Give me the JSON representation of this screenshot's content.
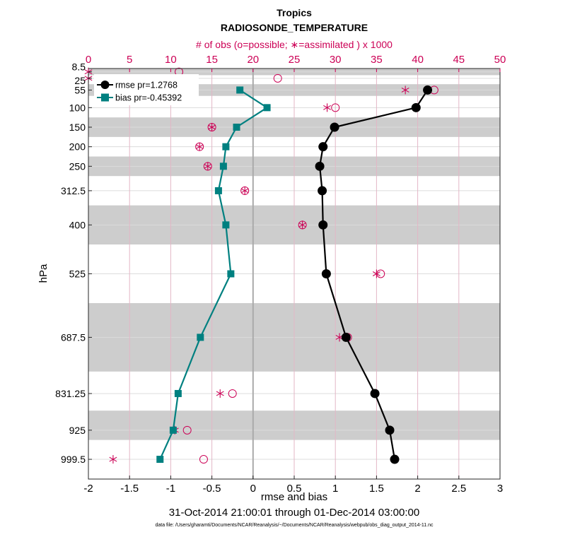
{
  "chart_data": {
    "type": "line",
    "title": "Tropics",
    "subtitle": "RADIOSONDE_TEMPERATURE",
    "top_axis_label": "# of obs (o=possible; ∗=assimilated ) x 1000",
    "xlabel": "rmse and bias",
    "ylabel": "hPa",
    "date_range": "31-Oct-2014 21:00:01 through 01-Dec-2014 03:00:00",
    "footnote": "data file: /Users/gharamti/Documents/NCAR/Reanalysis/~/Documents/NCAR/Reanalysis/webpub/obs_diag_output_2014-11.nc",
    "xlim": [
      -2,
      3
    ],
    "xticks": [
      -2,
      -1.5,
      -1,
      -0.5,
      0,
      0.5,
      1,
      1.5,
      2,
      2.5,
      3
    ],
    "xtick_labels": [
      "-2",
      "-1.5",
      "-1",
      "-0.5",
      "0",
      "0.5",
      "1",
      "1.5",
      "2",
      "2.5",
      "3"
    ],
    "top_xlim": [
      0,
      50
    ],
    "top_xticks": [
      0,
      5,
      10,
      15,
      20,
      25,
      30,
      35,
      40,
      45,
      50
    ],
    "top_xtick_labels": [
      "0",
      "5",
      "10",
      "15",
      "20",
      "25",
      "30",
      "35",
      "40",
      "45",
      "50"
    ],
    "ylim": [
      0,
      1050
    ],
    "levels": [
      8.5,
      25,
      55,
      100,
      150,
      200,
      250,
      312.5,
      400,
      525,
      687.5,
      831.25,
      925,
      999.5
    ],
    "level_labels": [
      "8.5",
      "25",
      "55",
      "100",
      "150",
      "200",
      "250",
      "312.5",
      "400",
      "525",
      "687.5",
      "831.25",
      "925",
      "999.5"
    ],
    "shaded_bands": [
      [
        0,
        17
      ],
      [
        40,
        70
      ],
      [
        125,
        175
      ],
      [
        225,
        275
      ],
      [
        350,
        450
      ],
      [
        600,
        775
      ],
      [
        875,
        950
      ]
    ],
    "series": [
      {
        "name": "rmse pr=1.2768",
        "color": "#000000",
        "marker": "circle",
        "values": [
          null,
          null,
          2.12,
          1.98,
          0.99,
          0.85,
          0.81,
          0.84,
          0.85,
          0.89,
          1.13,
          1.48,
          1.66,
          1.72
        ]
      },
      {
        "name": "bias pr=-0.45392",
        "color": "#008080",
        "marker": "square",
        "values": [
          null,
          null,
          -0.16,
          0.17,
          -0.2,
          -0.33,
          -0.36,
          -0.42,
          -0.33,
          -0.27,
          -0.64,
          -0.91,
          -0.97,
          -1.13
        ]
      }
    ],
    "obs_possible": [
      11,
      23,
      42,
      30,
      15,
      13.5,
      14.5,
      19,
      26,
      35.5,
      31.5,
      17.5,
      12,
      14
    ],
    "obs_assimilated": [
      0,
      0,
      38.5,
      29,
      15,
      13.5,
      14.5,
      19,
      26,
      35,
      30.5,
      16,
      10.5,
      3
    ]
  }
}
